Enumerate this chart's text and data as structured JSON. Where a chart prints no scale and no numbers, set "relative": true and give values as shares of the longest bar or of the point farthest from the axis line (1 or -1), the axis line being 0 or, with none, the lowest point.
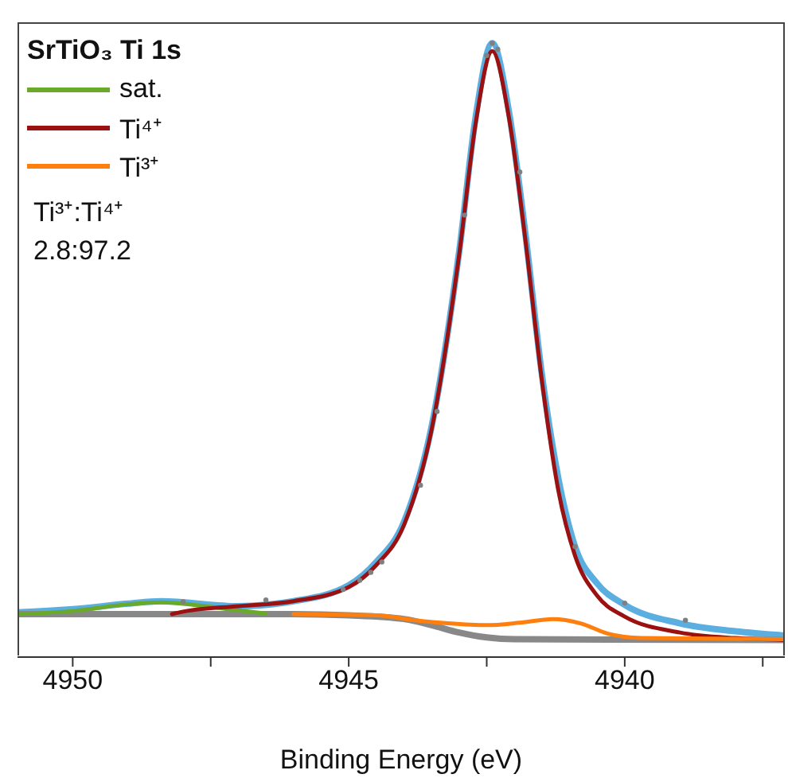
{
  "chart_data": {
    "type": "line",
    "title": "SrTiO₃ Ti 1s",
    "xlabel": "Binding Energy (eV)",
    "relative": true,
    "tick_labels": "x",
    "legend": "top left",
    "grid": false,
    "annotations": [
      "Ti³⁺:Ti⁴⁺",
      "2.8:97.2"
    ],
    "xlim": [
      4951,
      4937.1
    ],
    "xticks": [
      4950,
      {
        "value": 4947.5,
        "label": null
      },
      4945,
      {
        "value": 4942.5,
        "label": null
      },
      4940,
      {
        "value": 4937.5,
        "label": null
      }
    ],
    "series": [
      {
        "color": "#5aaee0",
        "x": [
          4951,
          4950,
          4949,
          4948.4,
          4947,
          4946,
          4945,
          4944.5,
          4944,
          4943.5,
          4943,
          4942.7,
          4942.4,
          4942.1,
          4941.8,
          4941.5,
          4941.2,
          4940.9,
          4940.5,
          4940,
          4939,
          4938,
          4937.1
        ],
        "values": [
          0.073,
          0.078,
          0.087,
          0.091,
          0.083,
          0.091,
          0.117,
          0.155,
          0.22,
          0.375,
          0.66,
          0.88,
          1.0,
          0.89,
          0.69,
          0.46,
          0.29,
          0.18,
          0.12,
          0.085,
          0.055,
          0.042,
          0.035
        ]
      },
      {
        "color": "#888888",
        "x": [
          4951,
          4946,
          4945,
          4944,
          4943.5,
          4943,
          4942.5,
          4942,
          4937.1
        ],
        "values": [
          0.07,
          0.07,
          0.068,
          0.062,
          0.052,
          0.04,
          0.032,
          0.029,
          0.028
        ]
      },
      {
        "name": "sat.",
        "color": "#6aaa2a",
        "x": [
          4951,
          4950,
          4949,
          4948.4,
          4947.8,
          4947,
          4946.5
        ],
        "values": [
          0.07,
          0.075,
          0.086,
          0.089,
          0.085,
          0.076,
          0.071
        ]
      },
      {
        "name": "Ti⁴⁺",
        "color": "#9b1010",
        "x": [
          4948.2,
          4948,
          4947,
          4946,
          4945,
          4944.5,
          4944,
          4943.5,
          4943,
          4942.7,
          4942.4,
          4942.1,
          4941.8,
          4941.5,
          4941.2,
          4940.9,
          4940.5,
          4940,
          4939,
          4938,
          4937.1
        ],
        "values": [
          0.07,
          0.074,
          0.083,
          0.091,
          0.114,
          0.15,
          0.215,
          0.37,
          0.655,
          0.87,
          0.987,
          0.88,
          0.68,
          0.45,
          0.27,
          0.165,
          0.1,
          0.066,
          0.04,
          0.031,
          0.028
        ]
      },
      {
        "name": "Ti³⁺",
        "color": "#ff7f0e",
        "x": [
          4946,
          4944.5,
          4943.8,
          4943.2,
          4942.5,
          4941.9,
          4941.3,
          4940.8,
          4940.3,
          4939.7,
          4937.1
        ],
        "values": [
          0.07,
          0.068,
          0.06,
          0.055,
          0.052,
          0.056,
          0.062,
          0.055,
          0.038,
          0.031,
          0.029
        ]
      },
      {
        "type": "scatter",
        "color": "#808080",
        "x": [
          4948,
          4946.5,
          4945.1,
          4944.8,
          4944.6,
          4944.4,
          4943.7,
          4943.4,
          4942.9,
          4942.5,
          4942.4,
          4942.3,
          4941.9,
          4940.9,
          4940,
          4938.9
        ],
        "values": [
          0.09,
          0.093,
          0.11,
          0.125,
          0.138,
          0.155,
          0.28,
          0.4,
          0.72,
          0.98,
          1.0,
          0.99,
          0.79,
          0.18,
          0.088,
          0.06
        ]
      }
    ]
  }
}
